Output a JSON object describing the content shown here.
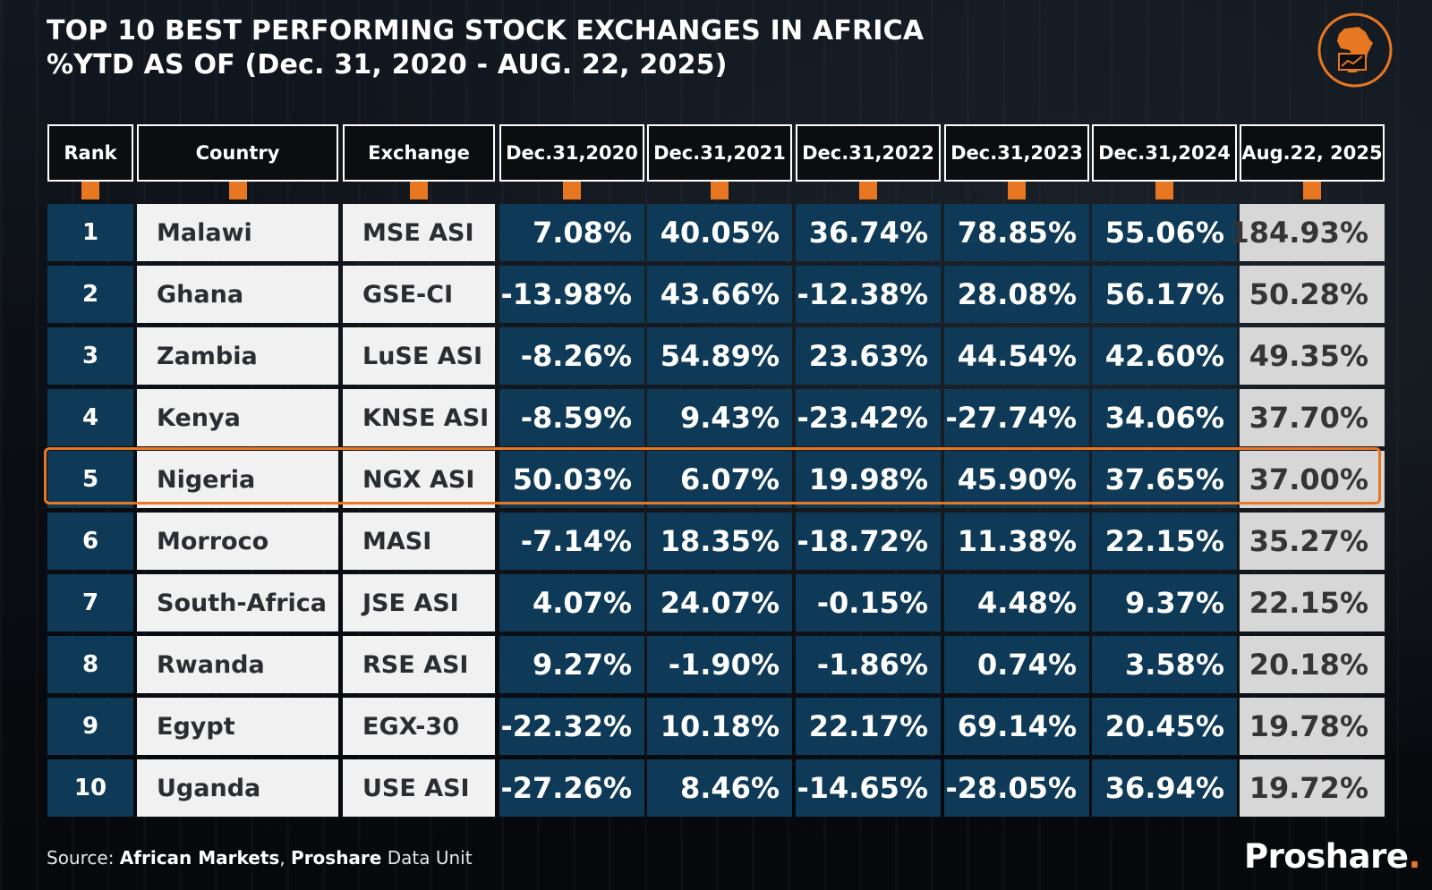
{
  "title": {
    "line1": "TOP 10 BEST PERFORMING STOCK EXCHANGES IN AFRICA",
    "line2": "%YTD AS OF (Dec. 31, 2020 - AUG. 22, 2025)"
  },
  "colors": {
    "accent": "#e87722",
    "cell_blue": "#0f3a57",
    "cell_light": "#f1f1f1",
    "cell_grey": "#d7d7d7"
  },
  "icons": {
    "logo": "africa-chart-icon"
  },
  "highlighted_rank": "5",
  "chart_data": {
    "type": "table",
    "columns": [
      "Rank",
      "Country",
      "Exchange",
      "Dec.31,2020",
      "Dec.31,2021",
      "Dec.31,2022",
      "Dec.31,2023",
      "Dec.31,2024",
      "Aug.22, 2025"
    ],
    "rows": [
      [
        "1",
        "Malawi",
        "MSE ASI",
        "7.08%",
        "40.05%",
        "36.74%",
        "78.85%",
        "55.06%",
        "184.93%"
      ],
      [
        "2",
        "Ghana",
        "GSE-CI",
        "-13.98%",
        "43.66%",
        "-12.38%",
        "28.08%",
        "56.17%",
        "50.28%"
      ],
      [
        "3",
        "Zambia",
        "LuSE ASI",
        "-8.26%",
        "54.89%",
        "23.63%",
        "44.54%",
        "42.60%",
        "49.35%"
      ],
      [
        "4",
        "Kenya",
        "KNSE ASI",
        "-8.59%",
        "9.43%",
        "-23.42%",
        "-27.74%",
        "34.06%",
        "37.70%"
      ],
      [
        "5",
        "Nigeria",
        "NGX ASI",
        "50.03%",
        "6.07%",
        "19.98%",
        "45.90%",
        "37.65%",
        "37.00%"
      ],
      [
        "6",
        "Morroco",
        "MASI",
        "-7.14%",
        "18.35%",
        "-18.72%",
        "11.38%",
        "22.15%",
        "35.27%"
      ],
      [
        "7",
        "South-Africa",
        "JSE ASI",
        "4.07%",
        "24.07%",
        "-0.15%",
        "4.48%",
        "9.37%",
        "22.15%"
      ],
      [
        "8",
        "Rwanda",
        "RSE ASI",
        "9.27%",
        "-1.90%",
        "-1.86%",
        "0.74%",
        "3.58%",
        "20.18%"
      ],
      [
        "9",
        "Egypt",
        "EGX-30",
        "-22.32%",
        "10.18%",
        "22.17%",
        "69.14%",
        "20.45%",
        "19.78%"
      ],
      [
        "10",
        "Uganda",
        "USE ASI",
        "-27.26%",
        "8.46%",
        "-14.65%",
        "-28.05%",
        "36.94%",
        "19.72%"
      ]
    ]
  },
  "footer": {
    "source_label": "Source: ",
    "source_1": "African Markets",
    "sep": ", ",
    "source_2": "Proshare",
    "source_3": " Data Unit",
    "brand": "Proshare",
    "brand_dot": "."
  }
}
